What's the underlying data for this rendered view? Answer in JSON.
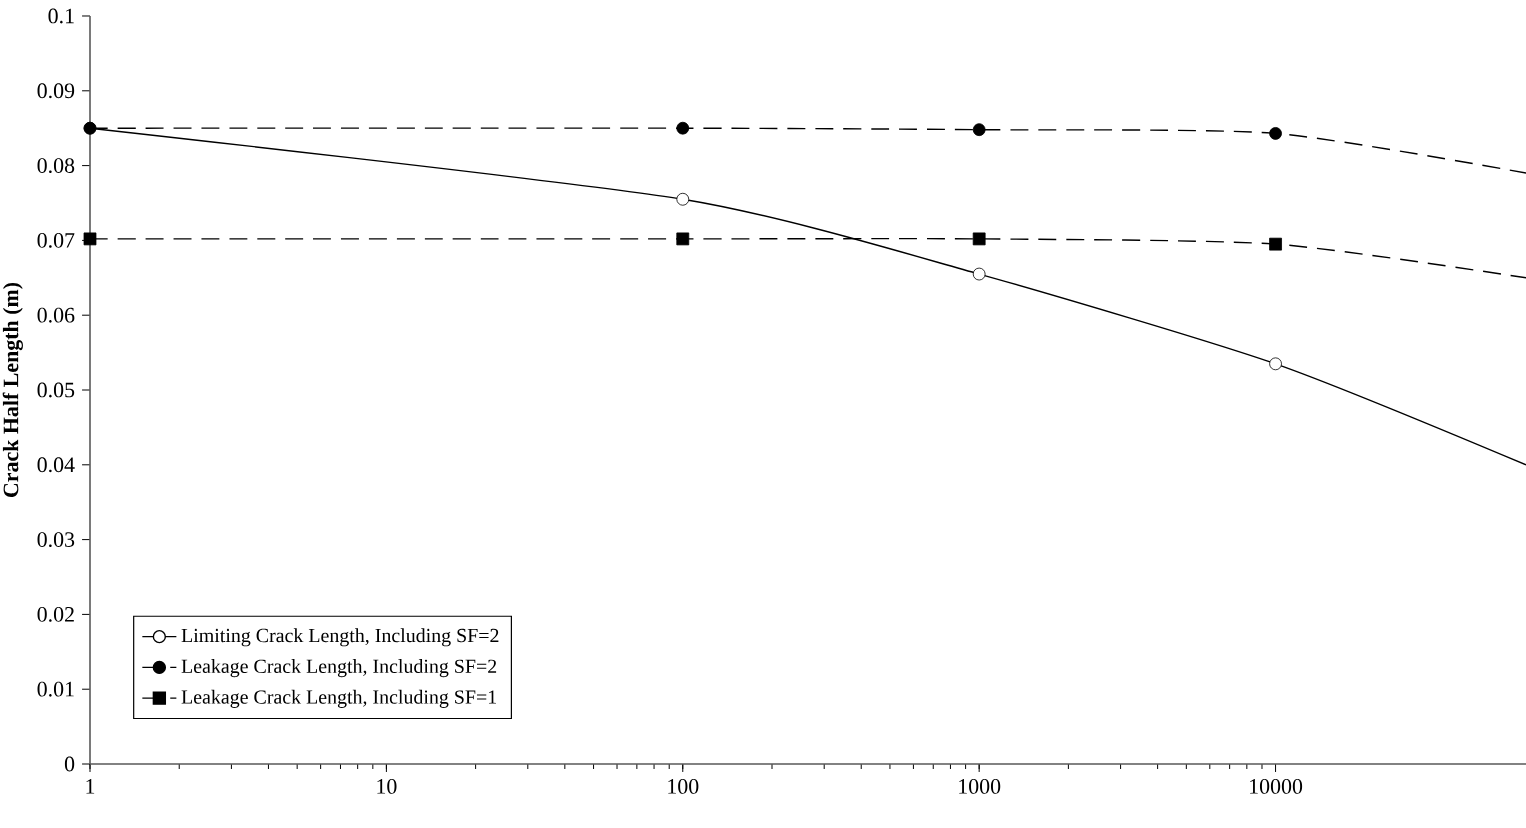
{
  "chart_data": {
    "type": "line",
    "ylabel": "Crack Half Length (m)",
    "log": "x",
    "xlim": [
      1,
      70000
    ],
    "ylim": [
      0,
      0.1
    ],
    "xticks": [
      1,
      10,
      100,
      1000,
      10000
    ],
    "yticks": [
      0,
      0.01,
      0.02,
      0.03,
      0.04,
      0.05,
      0.06,
      0.07,
      0.08,
      0.09,
      0.1
    ],
    "grid": false,
    "legend": "bottom left",
    "series": [
      {
        "name": "Limiting Crack Length, Including SF=2",
        "color": "#000000",
        "marker": "circle",
        "colors": [
          "#ffffff",
          "#ffffff",
          "#ffffff",
          "#ffffff",
          "#ffffff"
        ],
        "line_style": "solid",
        "x": [
          1,
          100,
          1000,
          10000,
          70000
        ],
        "values": [
          0.085,
          0.0755,
          0.0655,
          0.0535,
          0.04
        ]
      },
      {
        "name": "Leakage Crack Length, Including SF=2",
        "color": "#000000",
        "marker": "circle",
        "colors": [
          "#000000",
          "#000000",
          "#000000",
          "#000000",
          "#000000"
        ],
        "line_style": "dashed",
        "x": [
          1,
          100,
          1000,
          10000,
          70000
        ],
        "values": [
          0.085,
          0.085,
          0.0848,
          0.0843,
          0.079
        ]
      },
      {
        "name": "Leakage Crack Length, Including SF=1",
        "color": "#000000",
        "marker": "square",
        "colors": [
          "#000000",
          "#000000",
          "#000000",
          "#000000",
          "#000000"
        ],
        "line_style": "dashed",
        "x": [
          1,
          100,
          1000,
          10000,
          70000
        ],
        "values": [
          0.0702,
          0.0702,
          0.0702,
          0.0695,
          0.065
        ]
      }
    ]
  }
}
